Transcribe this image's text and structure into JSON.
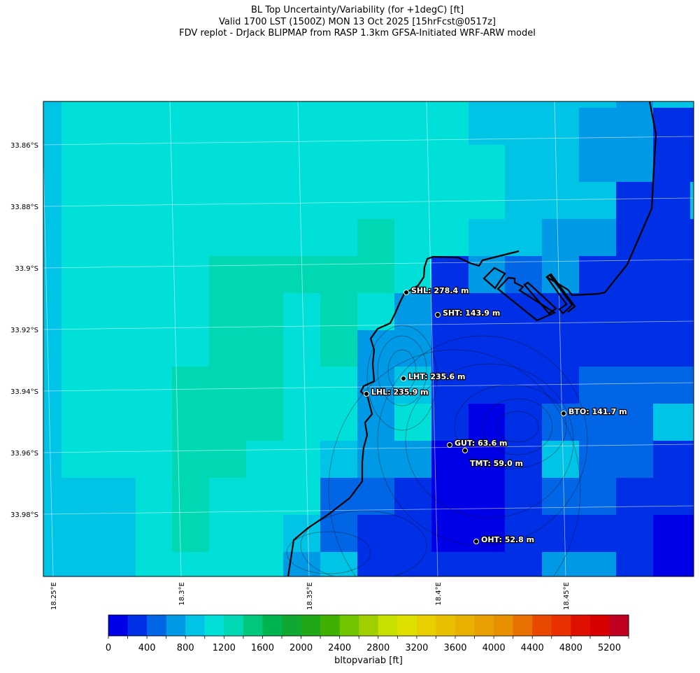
{
  "title": {
    "line1": "BL Top Uncertainty/Variability (for +1degC) [ft]",
    "line2": "Valid 1700 LST (1500Z) MON 13 Oct 2025 [15hrFcst@0517z]",
    "line3": "FDV replot - DrJack BLIPMAP from RASP 1.3km GFSA-Initiated WRF-ARW model"
  },
  "chart_data": {
    "type": "heatmap",
    "variable": "bltopvariab [ft]",
    "lat_ticks": [
      "33.86°S",
      "33.88°S",
      "33.9°S",
      "33.92°S",
      "33.94°S",
      "33.96°S",
      "33.98°S"
    ],
    "lon_ticks": [
      "18.25°E",
      "18.3°E",
      "18.35°E",
      "18.4°E",
      "18.45°E"
    ],
    "colorbar": {
      "label": "bltopvariab [ft]",
      "min": 0,
      "max": 5400,
      "step": 200,
      "tick_labels": [
        "0",
        "400",
        "800",
        "1200",
        "1600",
        "2000",
        "2400",
        "2800",
        "3200",
        "3600",
        "4000",
        "4400",
        "4800",
        "5200"
      ],
      "colors": [
        "#0000e6",
        "#0030e6",
        "#0066e6",
        "#0099e6",
        "#00c4e6",
        "#00e0d8",
        "#00d8b4",
        "#00c87c",
        "#00b450",
        "#10a830",
        "#20a818",
        "#40b000",
        "#70c400",
        "#a0d000",
        "#c8e000",
        "#e0e000",
        "#e8d000",
        "#e8c000",
        "#e8b000",
        "#e8a000",
        "#e89000",
        "#e87000",
        "#e84800",
        "#e83000",
        "#e01000",
        "#d80000",
        "#c00020"
      ]
    },
    "field_bin_index_rows_north_to_south": [
      [
        4,
        5,
        5,
        5,
        5,
        5,
        5,
        5,
        5,
        5,
        5,
        5,
        4,
        4,
        4,
        4,
        3,
        4,
        4
      ],
      [
        4,
        5,
        5,
        5,
        5,
        5,
        5,
        5,
        5,
        5,
        5,
        5,
        4,
        4,
        4,
        3,
        3,
        1,
        1
      ],
      [
        4,
        5,
        5,
        5,
        5,
        5,
        5,
        5,
        5,
        5,
        5,
        5,
        5,
        4,
        4,
        3,
        3,
        1,
        1
      ],
      [
        4,
        5,
        5,
        5,
        5,
        5,
        5,
        5,
        5,
        5,
        5,
        5,
        5,
        4,
        4,
        4,
        1,
        1,
        4
      ],
      [
        4,
        5,
        5,
        5,
        5,
        5,
        5,
        5,
        5,
        6,
        5,
        5,
        4,
        4,
        3,
        3,
        1,
        1,
        1
      ],
      [
        4,
        5,
        5,
        5,
        5,
        6,
        6,
        6,
        6,
        6,
        5,
        1,
        3,
        2,
        3,
        1,
        1,
        1,
        1
      ],
      [
        4,
        5,
        5,
        5,
        5,
        6,
        6,
        5,
        6,
        5,
        3,
        1,
        1,
        1,
        1,
        1,
        1,
        1,
        1
      ],
      [
        4,
        5,
        5,
        5,
        5,
        6,
        6,
        5,
        6,
        3,
        3,
        1,
        1,
        1,
        1,
        1,
        1,
        1,
        1
      ],
      [
        4,
        5,
        5,
        5,
        6,
        6,
        6,
        5,
        5,
        3,
        4,
        1,
        1,
        1,
        1,
        2,
        2,
        2,
        2
      ],
      [
        4,
        5,
        5,
        5,
        6,
        6,
        6,
        5,
        5,
        3,
        5,
        1,
        0,
        1,
        2,
        2,
        2,
        4,
        4
      ],
      [
        4,
        5,
        5,
        5,
        6,
        6,
        5,
        5,
        4,
        3,
        3,
        0,
        0,
        1,
        4,
        2,
        2,
        1,
        1
      ],
      [
        4,
        4,
        4,
        5,
        6,
        5,
        5,
        5,
        2,
        2,
        1,
        0,
        0,
        1,
        2,
        2,
        1,
        1,
        1
      ],
      [
        4,
        4,
        4,
        5,
        6,
        5,
        5,
        4,
        2,
        1,
        1,
        0,
        0,
        1,
        1,
        1,
        1,
        0,
        0
      ],
      [
        4,
        4,
        4,
        5,
        5,
        5,
        5,
        3,
        4,
        1,
        1,
        1,
        1,
        1,
        3,
        3,
        1,
        0,
        0
      ]
    ],
    "stations": [
      {
        "label": "SHL: 278.4 m"
      },
      {
        "label": "SHT: 143.9 m"
      },
      {
        "label": "LHT: 235.6 m"
      },
      {
        "label": "LHL: 235.9 m"
      },
      {
        "label": "BTO: 141.7 m"
      },
      {
        "label": "GUT: 63.6 m"
      },
      {
        "label": "TMT: 59.0 m"
      },
      {
        "label": "OHT: 52.8 m"
      }
    ]
  }
}
